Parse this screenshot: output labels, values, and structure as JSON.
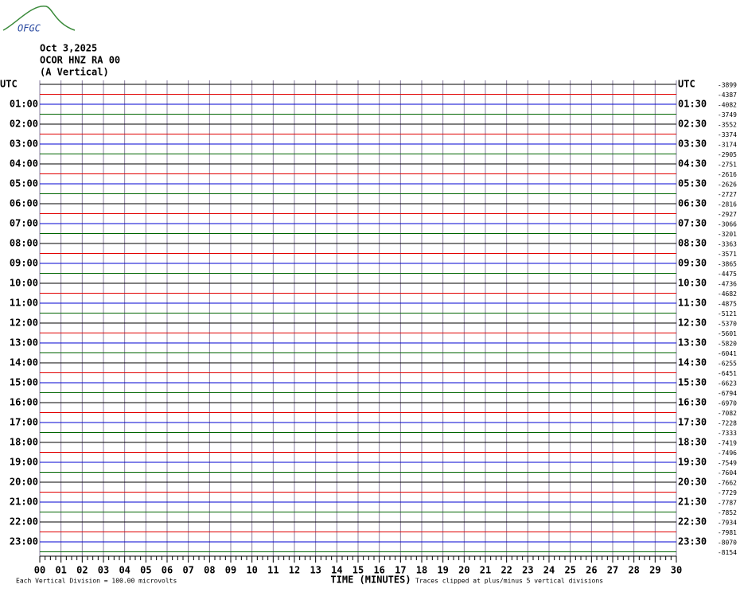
{
  "logo": "OFGC",
  "header": {
    "date": "Oct 3,2025",
    "station": "OCOR HNZ RA 00",
    "component": "(A Vertical)"
  },
  "trace_colors": [
    "#000000",
    "#e00000",
    "#0000d0",
    "#006400"
  ],
  "grid_color": "#8a7fa0",
  "left_labels": [
    "UTC",
    "01:00",
    "02:00",
    "03:00",
    "04:00",
    "05:00",
    "06:00",
    "07:00",
    "08:00",
    "09:00",
    "10:00",
    "11:00",
    "12:00",
    "13:00",
    "14:00",
    "15:00",
    "16:00",
    "17:00",
    "18:00",
    "19:00",
    "20:00",
    "21:00",
    "22:00",
    "23:00"
  ],
  "right_labels": [
    "UTC",
    "01:30",
    "02:30",
    "03:30",
    "04:30",
    "05:30",
    "06:30",
    "07:30",
    "08:30",
    "09:30",
    "10:30",
    "11:30",
    "12:30",
    "13:30",
    "14:30",
    "15:30",
    "16:30",
    "17:30",
    "18:30",
    "19:30",
    "20:30",
    "21:30",
    "22:30",
    "23:30"
  ],
  "offsets": [
    "-3899",
    "-4387",
    "-4082",
    "-3749",
    "-3552",
    "-3374",
    "-3174",
    "-2905",
    "-2751",
    "-2616",
    "-2626",
    "-2727",
    "-2816",
    "-2927",
    "-3066",
    "-3201",
    "-3363",
    "-3571",
    "-3865",
    "-4475",
    "-4736",
    "-4682",
    "-4875",
    "-5121",
    "-5370",
    "-5601",
    "-5820",
    "-6041",
    "-6255",
    "-6451",
    "-6623",
    "-6794",
    "-6970",
    "-7082",
    "-7228",
    "-7333",
    "-7419",
    "-7496",
    "-7549",
    "-7604",
    "-7662",
    "-7729",
    "-7787",
    "-7852",
    "-7934",
    "-7981",
    "-8070",
    "-8154"
  ],
  "x_axis": {
    "ticks": [
      "00",
      "01",
      "02",
      "03",
      "04",
      "05",
      "06",
      "07",
      "08",
      "09",
      "10",
      "11",
      "12",
      "13",
      "14",
      "15",
      "16",
      "17",
      "18",
      "19",
      "20",
      "21",
      "22",
      "23",
      "24",
      "25",
      "26",
      "27",
      "28",
      "29",
      "30"
    ],
    "title": "TIME (MINUTES)"
  },
  "footer": {
    "scale": "Each Vertical Division =  100.00 microvolts",
    "clip": "Traces clipped at plus/minus 5 vertical divisions"
  }
}
